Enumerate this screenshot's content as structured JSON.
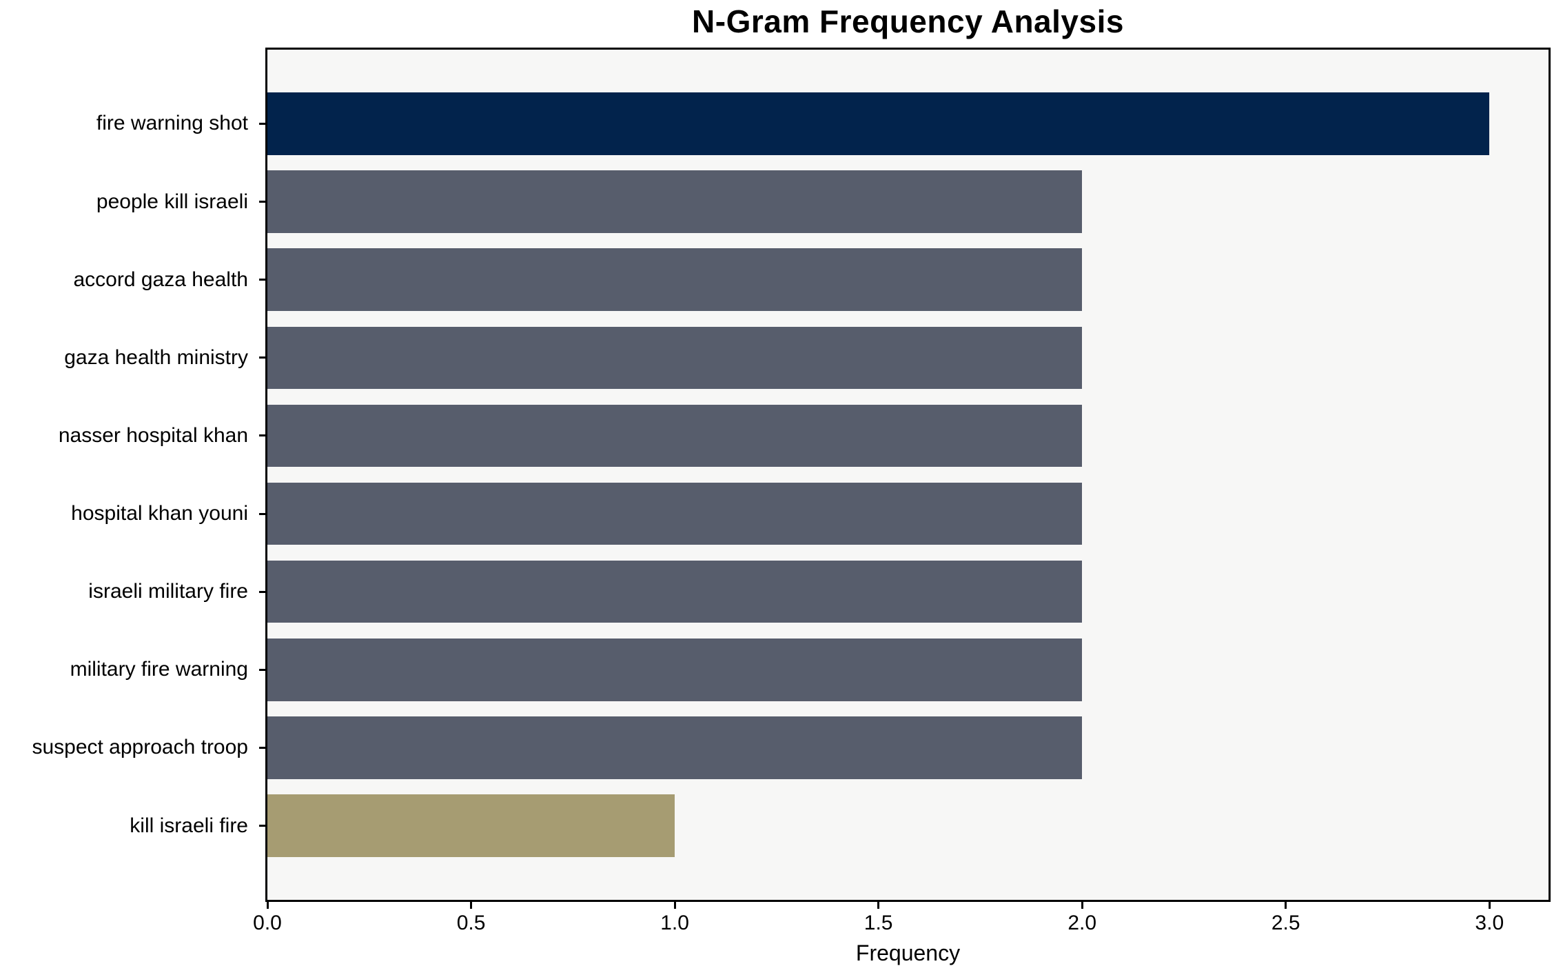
{
  "title": "N-Gram Frequency Analysis",
  "chart_data": {
    "type": "bar",
    "orientation": "horizontal",
    "title": "N-Gram Frequency Analysis",
    "xlabel": "Frequency",
    "ylabel": "",
    "categories": [
      "fire warning shot",
      "people kill israeli",
      "accord gaza health",
      "gaza health ministry",
      "nasser hospital khan",
      "hospital khan youni",
      "israeli military fire",
      "military fire warning",
      "suspect approach troop",
      "kill israeli fire"
    ],
    "values": [
      3,
      2,
      2,
      2,
      2,
      2,
      2,
      2,
      2,
      1
    ],
    "bar_colors": [
      "#02234c",
      "#575d6c",
      "#575d6c",
      "#575d6c",
      "#575d6c",
      "#575d6c",
      "#575d6c",
      "#575d6c",
      "#575d6c",
      "#a69c72"
    ],
    "xlim": [
      0,
      3.145
    ],
    "xticks": [
      0.0,
      0.5,
      1.0,
      1.5,
      2.0,
      2.5,
      3.0
    ],
    "xtick_labels": [
      "0.0",
      "0.5",
      "1.0",
      "1.5",
      "2.0",
      "2.5",
      "3.0"
    ],
    "grid": false,
    "legend": null,
    "plot_background": "#f7f7f6",
    "figure_background": "#ffffff"
  }
}
